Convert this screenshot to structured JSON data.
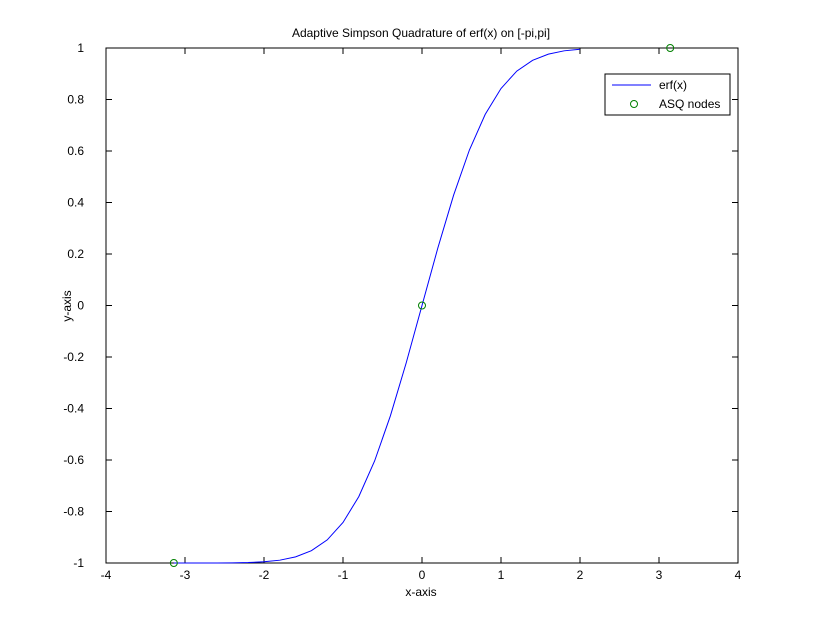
{
  "figure": {
    "background": "#ffffff"
  },
  "chart_data": {
    "type": "line",
    "title": "Adaptive Simpson Quadrature of erf(x) on [-pi,pi]",
    "xlabel": "x-axis",
    "ylabel": "y-axis",
    "xlim": [
      -4,
      4
    ],
    "ylim": [
      -1,
      1
    ],
    "xticks": [
      "-4",
      "-3",
      "-2",
      "-1",
      "0",
      "1",
      "2",
      "3",
      "4"
    ],
    "yticks": [
      "-1",
      "-0.8",
      "-0.6",
      "-0.4",
      "-0.2",
      "0",
      "0.2",
      "0.4",
      "0.6",
      "0.8",
      "1"
    ],
    "grid": false,
    "legend_position": "top-right",
    "series": [
      {
        "name": "erf(x)",
        "color": "#0000ff",
        "style": "line",
        "x": [
          -3.1416,
          -3.0,
          -2.8,
          -2.6,
          -2.4,
          -2.2,
          -2.0,
          -1.8,
          -1.6,
          -1.4,
          -1.2,
          -1.0,
          -0.8,
          -0.6,
          -0.4,
          -0.2,
          0.0,
          0.2,
          0.4,
          0.6,
          0.8,
          1.0,
          1.2,
          1.4,
          1.6,
          1.8,
          2.0
        ],
        "y": [
          -1.0,
          -1.0,
          -0.9999,
          -0.9998,
          -0.9993,
          -0.9981,
          -0.9953,
          -0.9891,
          -0.9763,
          -0.9523,
          -0.9103,
          -0.8427,
          -0.7421,
          -0.6039,
          -0.4284,
          -0.2227,
          0.0,
          0.2227,
          0.4284,
          0.6039,
          0.7421,
          0.8427,
          0.9103,
          0.9523,
          0.9763,
          0.9891,
          0.9953
        ]
      },
      {
        "name": "ASQ nodes",
        "color": "#008000",
        "style": "markers",
        "marker": "circle",
        "x": [
          -3.1416,
          0.0,
          3.1416
        ],
        "y": [
          -1.0,
          0.0,
          1.0
        ]
      }
    ]
  }
}
